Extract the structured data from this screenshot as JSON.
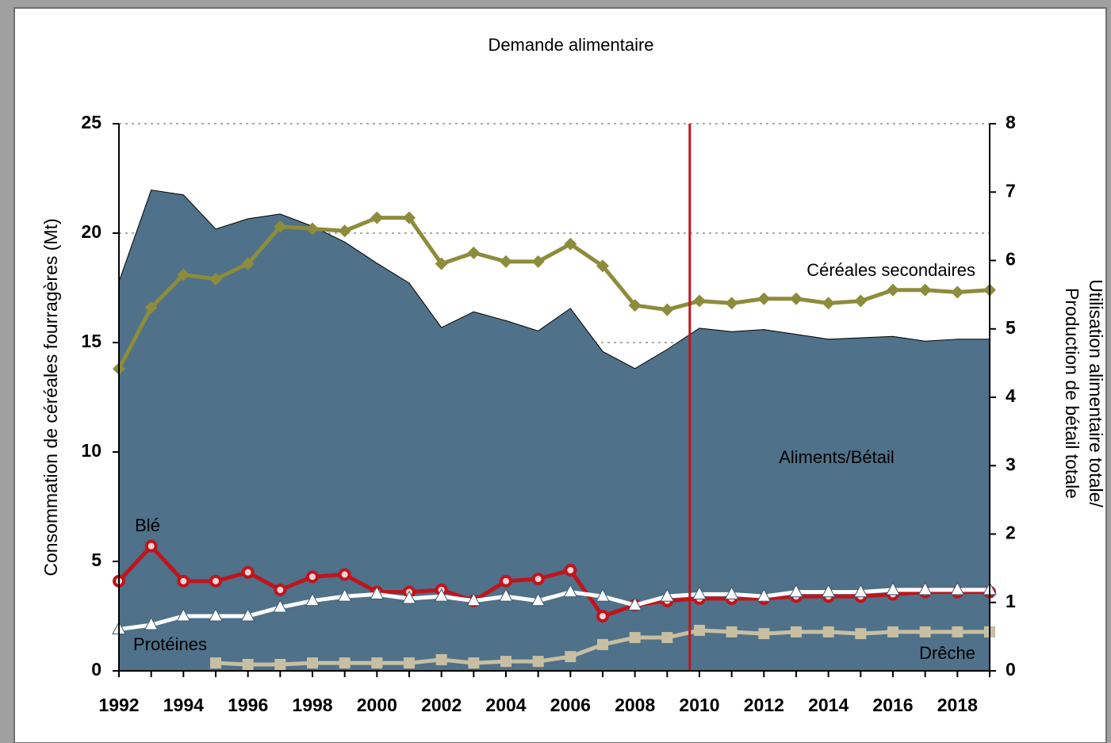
{
  "chart_data": {
    "type": "line",
    "title": "Demande alimentaire",
    "y_label": "Consommation de céréales fourragères (Mt)",
    "y2_label": [
      "Utilisation alimentaire totale/",
      "Production de bétail totale"
    ],
    "x": [
      1992,
      1993,
      1994,
      1995,
      1996,
      1997,
      1998,
      1999,
      2000,
      2001,
      2002,
      2003,
      2004,
      2005,
      2006,
      2007,
      2008,
      2009,
      2010,
      2011,
      2012,
      2013,
      2014,
      2015,
      2016,
      2017,
      2018,
      2019
    ],
    "xlim": [
      1992,
      2019
    ],
    "xticks": [
      1992,
      1994,
      1996,
      1998,
      2000,
      2002,
      2004,
      2006,
      2008,
      2010,
      2012,
      2014,
      2016,
      2018
    ],
    "ylim": [
      0,
      25
    ],
    "yticks": [
      0,
      5,
      10,
      15,
      20,
      25
    ],
    "y2lim": [
      0,
      8
    ],
    "y2ticks": [
      0,
      1,
      2,
      3,
      4,
      5,
      6,
      7,
      8
    ],
    "grid": true,
    "vline": {
      "x": 2009.7,
      "color": "#c0141c"
    },
    "series": [
      {
        "name": "Aliments/Bétail",
        "kind": "area",
        "axis": "y2",
        "color": "#4f7189",
        "values": [
          5.69,
          7.03,
          6.96,
          6.46,
          6.61,
          6.68,
          6.5,
          6.27,
          5.96,
          5.67,
          5.02,
          5.25,
          5.12,
          4.97,
          5.3,
          4.67,
          4.42,
          4.7,
          5.01,
          4.96,
          4.99,
          4.92,
          4.85,
          4.87,
          4.89,
          4.82,
          4.85,
          4.85
        ]
      },
      {
        "name": "Céréales secondaires",
        "marker": "diamond",
        "color": "#8c8c3c",
        "values": [
          13.8,
          16.6,
          18.1,
          17.9,
          18.6,
          20.3,
          20.2,
          20.1,
          20.7,
          20.7,
          18.6,
          19.1,
          18.7,
          18.7,
          19.5,
          18.5,
          16.7,
          16.5,
          16.9,
          16.8,
          17.0,
          17.0,
          16.8,
          16.9,
          17.4,
          17.4,
          17.3,
          17.4
        ]
      },
      {
        "name": "Blé",
        "marker": "circle",
        "color": "#c0141c",
        "values": [
          4.1,
          5.7,
          4.1,
          4.1,
          4.5,
          3.7,
          4.3,
          4.4,
          3.6,
          3.6,
          3.7,
          3.2,
          4.1,
          4.2,
          4.6,
          2.5,
          3.0,
          3.2,
          3.3,
          3.3,
          3.3,
          3.4,
          3.4,
          3.4,
          3.5,
          3.6,
          3.6,
          3.6
        ]
      },
      {
        "name": "Protéines",
        "marker": "triangle",
        "color": "#ffffff",
        "values": [
          1.9,
          2.1,
          2.5,
          2.5,
          2.5,
          2.9,
          3.2,
          3.4,
          3.5,
          3.3,
          3.4,
          3.2,
          3.4,
          3.2,
          3.6,
          3.4,
          3.0,
          3.4,
          3.5,
          3.5,
          3.4,
          3.6,
          3.6,
          3.6,
          3.7,
          3.7,
          3.7,
          3.7
        ]
      },
      {
        "name": "Drêche",
        "marker": "square",
        "color": "#c8bfa2",
        "values": [
          null,
          null,
          null,
          0.36,
          0.29,
          0.29,
          0.36,
          0.36,
          0.36,
          0.36,
          0.51,
          0.36,
          0.43,
          0.43,
          0.65,
          1.2,
          1.52,
          1.52,
          1.85,
          1.78,
          1.7,
          1.78,
          1.78,
          1.7,
          1.78,
          1.78,
          1.78,
          1.78
        ]
      }
    ]
  }
}
